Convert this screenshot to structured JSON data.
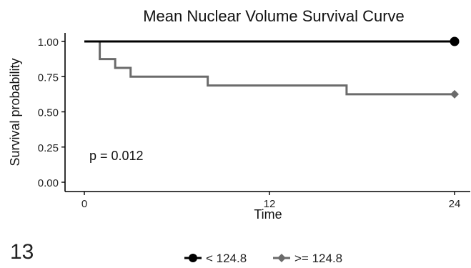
{
  "panel_label": "13",
  "chart_data": {
    "type": "line",
    "step": true,
    "title": "Mean Nuclear Volume Survival Curve",
    "xlabel": "Time",
    "ylabel": "Survival probability",
    "xlim": [
      0,
      24
    ],
    "ylim": [
      0,
      1
    ],
    "x_ticks": [
      0,
      12,
      24
    ],
    "x_tick_labels": [
      "0",
      "12",
      "24"
    ],
    "y_ticks": [
      0,
      0.25,
      0.5,
      0.75,
      1.0
    ],
    "y_tick_labels": [
      "0.00",
      "0.25",
      "0.50",
      "0.75",
      "1.00"
    ],
    "grid": false,
    "annotation": "p = 0.012",
    "legend_position": "bottom",
    "series": [
      {
        "name": "< 124.8",
        "color": "#000000",
        "marker": "circle",
        "points": [
          [
            0,
            1.0
          ],
          [
            24,
            1.0
          ]
        ]
      },
      {
        "name": ">= 124.8",
        "color": "#6b6b6b",
        "marker": "diamond",
        "points": [
          [
            0,
            1.0
          ],
          [
            1,
            0.875
          ],
          [
            2,
            0.8125
          ],
          [
            3,
            0.75
          ],
          [
            8,
            0.6875
          ],
          [
            17,
            0.625
          ],
          [
            24,
            0.625
          ]
        ]
      }
    ]
  }
}
